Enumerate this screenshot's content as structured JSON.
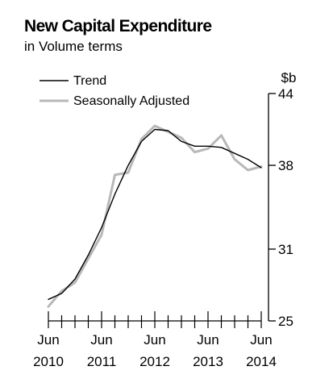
{
  "chart_data": {
    "type": "line",
    "title": "New Capital Expenditure",
    "subtitle": "in Volume terms",
    "ylabel": "$b",
    "xlabel": "",
    "ylim": [
      25,
      44
    ],
    "yticks": [
      25,
      31,
      38,
      44
    ],
    "x": [
      "Jun 2010",
      "Sep 2010",
      "Dec 2010",
      "Mar 2011",
      "Jun 2011",
      "Sep 2011",
      "Dec 2011",
      "Mar 2012",
      "Jun 2012",
      "Sep 2012",
      "Dec 2012",
      "Mar 2013",
      "Jun 2013",
      "Sep 2013",
      "Dec 2013",
      "Mar 2014",
      "Jun 2014"
    ],
    "xtick_labels": [
      {
        "month": "Jun",
        "year": "2010"
      },
      {
        "month": "Jun",
        "year": "2011"
      },
      {
        "month": "Jun",
        "year": "2012"
      },
      {
        "month": "Jun",
        "year": "2013"
      },
      {
        "month": "Jun",
        "year": "2014"
      }
    ],
    "legend_position": "top-left",
    "grid": false,
    "series": [
      {
        "name": "Trend",
        "color": "#000000",
        "values": [
          26.8,
          27.3,
          28.5,
          30.5,
          32.8,
          35.6,
          38.0,
          40.0,
          41.0,
          40.9,
          40.0,
          39.6,
          39.6,
          39.5,
          39.0,
          38.5,
          37.8
        ]
      },
      {
        "name": "Seasonally Adjusted",
        "color": "#b8b8b8",
        "values": [
          26.2,
          27.5,
          28.2,
          30.2,
          32.2,
          37.2,
          37.4,
          40.2,
          41.3,
          40.8,
          40.3,
          39.1,
          39.4,
          40.5,
          38.5,
          37.6,
          37.9
        ]
      }
    ]
  }
}
